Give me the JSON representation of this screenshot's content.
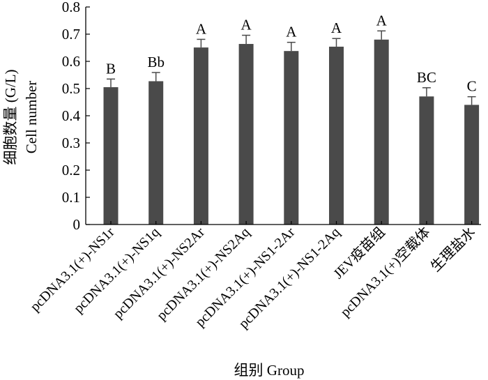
{
  "chart_data": {
    "type": "bar",
    "xlabel": "组别 Group",
    "ylabel_cn": "细胞数量 (G/L)",
    "ylabel_en": "Cell number",
    "ylim": [
      0,
      0.8
    ],
    "yticks": [
      "0",
      "0.1",
      "0.2",
      "0.3",
      "0.4",
      "0.5",
      "0.6",
      "0.7",
      "0.8"
    ],
    "bar_color": "#4a4a4a",
    "categories": [
      "pcDNA3.1(+)-NS1r",
      "pcDNA3.1(+)-NS1q",
      "pcDNA3.1(+)-NS2Ar",
      "pcDNA3.1(+)-NS2Aq",
      "pcDNA3.1(+)-NS1-2Ar",
      "pcDNA3.1(+)-NS1-2Aq",
      "JEV疫苗组",
      "pcDNA3.1(+)空载体",
      "生理盐水"
    ],
    "values": [
      0.505,
      0.527,
      0.651,
      0.664,
      0.638,
      0.654,
      0.68,
      0.471,
      0.44
    ],
    "errors": [
      0.03,
      0.032,
      0.03,
      0.032,
      0.032,
      0.03,
      0.032,
      0.032,
      0.03
    ],
    "significance_labels": [
      "B",
      "Bb",
      "A",
      "A",
      "A",
      "A",
      "A",
      "BC",
      "C"
    ]
  }
}
